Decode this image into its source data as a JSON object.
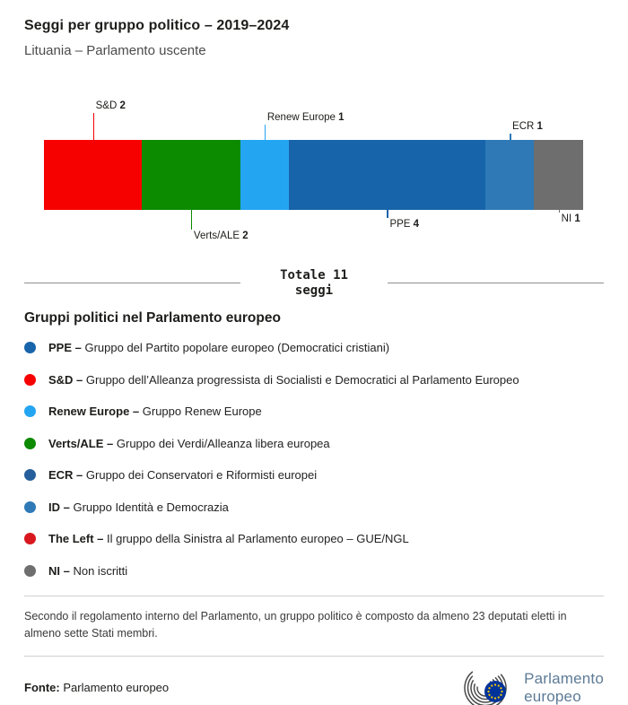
{
  "header": {
    "title": "Seggi per gruppo politico – 2019–2024",
    "subtitle": "Lituania – Parlamento uscente"
  },
  "chart_data": {
    "type": "bar",
    "variant": "horizontal-stacked",
    "title": "Seggi per gruppo politico – 2019–2024",
    "subtitle": "Lituania – Parlamento uscente",
    "total_seats": 11,
    "total_label": {
      "line1": "Totale 11",
      "line2": "seggi"
    },
    "segments": [
      {
        "group": "S&D",
        "seats": 2,
        "color": "#f60000",
        "callout": "top",
        "line": 30
      },
      {
        "group": "Verts/ALE",
        "seats": 2,
        "color": "#0c8a00",
        "callout": "bottom",
        "line": 22
      },
      {
        "group": "Renew Europe",
        "seats": 1,
        "color": "#24a5f2",
        "callout": "top",
        "line": 17
      },
      {
        "group": "PPE",
        "seats": 4,
        "color": "#1764aa",
        "callout": "bottom",
        "line": 9
      },
      {
        "group": "ECR",
        "seats": 1,
        "color": "#2e79b6",
        "callout": "top",
        "line": 7
      },
      {
        "group": "NI",
        "seats": 1,
        "color": "#6e6e6e",
        "callout": "bottom",
        "line": 3
      }
    ]
  },
  "legend": {
    "heading": "Gruppi politici nel Parlamento europeo",
    "items": [
      {
        "name": "PPE",
        "desc": "Gruppo del Partito popolare europeo (Democratici cristiani)",
        "color": "#1764aa"
      },
      {
        "name": "S&D",
        "desc": "Gruppo dell’Alleanza progressista di Socialisti e Democratici al Parlamento Europeo",
        "color": "#f60000"
      },
      {
        "name": "Renew Europe",
        "desc": "Gruppo Renew Europe",
        "color": "#24a5f2"
      },
      {
        "name": "Verts/ALE",
        "desc": "Gruppo dei Verdi/Alleanza libera europea",
        "color": "#0c8a00"
      },
      {
        "name": "ECR",
        "desc": "Gruppo dei Conservatori e Riformisti europei",
        "color": "#265e9c"
      },
      {
        "name": "ID",
        "desc": "Gruppo Identità e Democrazia",
        "color": "#2e79b6"
      },
      {
        "name": "The Left",
        "desc": "Il gruppo della Sinistra al Parlamento europeo – GUE/NGL",
        "color": "#d8171e"
      },
      {
        "name": "NI",
        "desc": "Non iscritti",
        "color": "#6e6e6e"
      }
    ]
  },
  "footnote": "Secondo il regolamento interno del Parlamento, un gruppo politico è composto da almeno 23 deputati eletti in almeno sette Stati membri.",
  "source": {
    "label": "Fonte:",
    "text": "Parlamento europeo"
  },
  "logo": {
    "line1": "Parlamento",
    "line2": "europeo"
  }
}
